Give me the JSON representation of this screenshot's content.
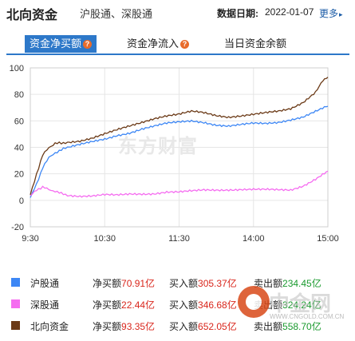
{
  "header": {
    "title": "北向资金",
    "subtitle": "沪股通、深股通",
    "date_label": "数据日期:",
    "date_value": "2022-01-07",
    "more_label": "更多"
  },
  "tabs": [
    {
      "label": "资金净买额",
      "active": true
    },
    {
      "label": "资金净流入",
      "active": false
    },
    {
      "label": "当日资金余额",
      "active": false
    }
  ],
  "colors": {
    "accent": "#2d78c9",
    "sh": "#3d87f5",
    "sz": "#f56cf0",
    "north": "#6b3a17",
    "buy": "#d9261c",
    "sell": "#1a9a2e"
  },
  "chart_data": {
    "type": "line",
    "x_ticks": [
      "9:30",
      "10:30",
      "11:30",
      "14:00",
      "15:00"
    ],
    "y_ticks": [
      100,
      80,
      60,
      40,
      20,
      0,
      -20
    ],
    "ylim": [
      -20,
      100
    ],
    "grid": true,
    "series": [
      {
        "name": "沪股通",
        "color": "#3d87f5",
        "x": [
          0,
          5,
          10,
          15,
          20,
          25,
          30,
          40,
          50,
          60,
          70,
          80,
          90,
          100,
          110,
          120,
          130,
          140,
          150,
          160,
          170,
          180,
          190,
          200,
          210,
          220,
          230,
          240
        ],
        "values": [
          2,
          12,
          25,
          32,
          36,
          38,
          40,
          42,
          44,
          46,
          49,
          51,
          54,
          56,
          58,
          59,
          60,
          59,
          57,
          56,
          57,
          58,
          58,
          59,
          61,
          63,
          67,
          71
        ]
      },
      {
        "name": "深股通",
        "color": "#f56cf0",
        "x": [
          0,
          5,
          10,
          15,
          20,
          25,
          30,
          40,
          50,
          60,
          70,
          80,
          90,
          100,
          110,
          120,
          130,
          140,
          150,
          160,
          170,
          180,
          190,
          200,
          210,
          220,
          230,
          240
        ],
        "values": [
          3,
          8,
          10,
          8,
          7,
          5,
          4,
          3,
          3,
          4,
          4,
          5,
          5,
          5,
          6,
          6,
          7,
          8,
          8,
          8,
          8,
          8,
          8,
          8,
          8,
          11,
          16,
          22
        ]
      },
      {
        "name": "北向资金",
        "color": "#6b3a17",
        "x": [
          0,
          5,
          10,
          15,
          20,
          25,
          30,
          40,
          50,
          60,
          70,
          80,
          90,
          100,
          110,
          120,
          130,
          140,
          150,
          160,
          170,
          180,
          190,
          200,
          210,
          220,
          230,
          236,
          240
        ],
        "values": [
          4,
          20,
          34,
          40,
          43,
          43,
          44,
          45,
          47,
          50,
          53,
          56,
          59,
          62,
          64,
          65,
          67,
          66,
          64,
          63,
          64,
          65,
          66,
          67,
          69,
          74,
          82,
          91,
          93
        ]
      }
    ]
  },
  "watermark": {
    "chart_text": "东方财富",
    "site_text": "中金网",
    "site_url": "WWW.CNGOLD.COM.CN"
  },
  "legend": [
    {
      "color": "#3d87f5",
      "name": "沪股通",
      "net_label": "净买额",
      "net_value": "70.91亿",
      "buy_label": "买入额",
      "buy_value": "305.37亿",
      "sell_label": "卖出额",
      "sell_value": "234.45亿"
    },
    {
      "color": "#f56cf0",
      "name": "深股通",
      "net_label": "净买额",
      "net_value": "22.44亿",
      "buy_label": "买入额",
      "buy_value": "346.68亿",
      "sell_label": "卖出额",
      "sell_value": "324.24亿"
    },
    {
      "color": "#6b3a17",
      "name": "北向资金",
      "net_label": "净买额",
      "net_value": "93.35亿",
      "buy_label": "买入额",
      "buy_value": "652.05亿",
      "sell_label": "卖出额",
      "sell_value": "558.70亿"
    }
  ]
}
